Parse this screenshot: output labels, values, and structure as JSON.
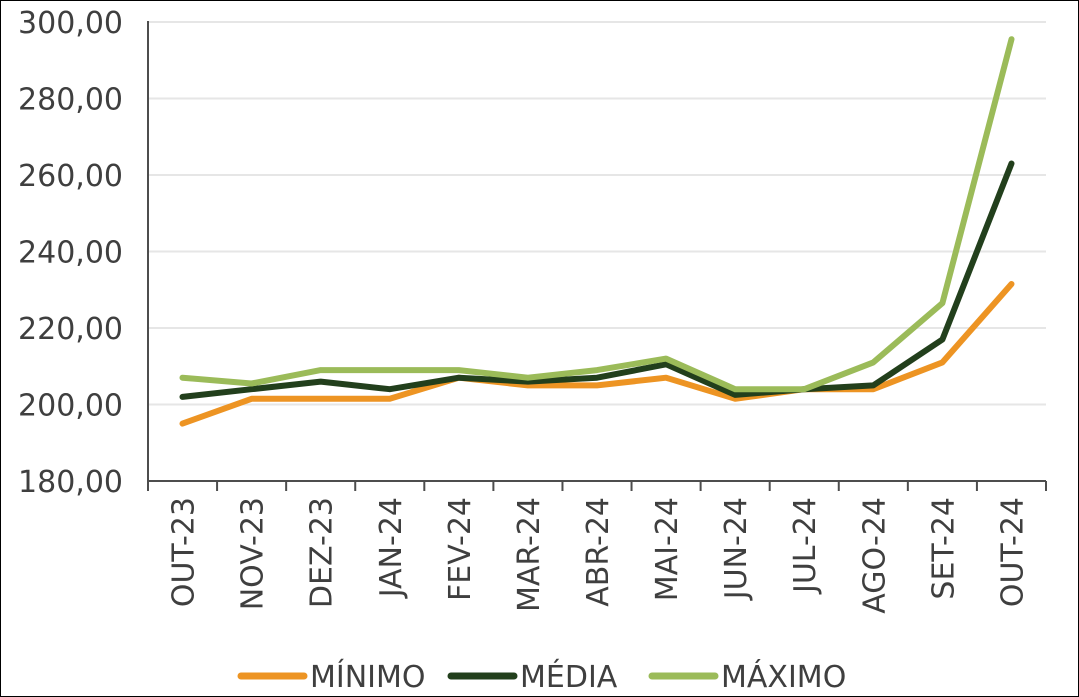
{
  "chart_data": {
    "type": "line",
    "categories": [
      "OUT-23",
      "NOV-23",
      "DEZ-23",
      "JAN-24",
      "FEV-24",
      "MAR-24",
      "ABR-24",
      "MAI-24",
      "JUN-24",
      "JUL-24",
      "AGO-24",
      "SET-24",
      "OUT-24"
    ],
    "series": [
      {
        "name": "MÍNIMO",
        "color": "#ed9423",
        "values": [
          195.0,
          201.5,
          201.5,
          201.5,
          207.0,
          205.0,
          205.0,
          207.0,
          201.5,
          204.0,
          204.0,
          211.0,
          231.5
        ]
      },
      {
        "name": "MÉDIA",
        "color": "#223f1c",
        "values": [
          202.0,
          204.0,
          206.0,
          204.0,
          207.0,
          206.0,
          207.0,
          210.5,
          202.5,
          204.0,
          205.0,
          217.0,
          263.0
        ]
      },
      {
        "name": "MÁXIMO",
        "color": "#9bbb59",
        "values": [
          207.0,
          205.5,
          209.0,
          209.0,
          209.0,
          207.0,
          209.0,
          212.0,
          204.0,
          204.0,
          211.0,
          226.5,
          295.5
        ]
      }
    ],
    "ylim": [
      180,
      300
    ],
    "yticks": [
      "180,00",
      "200,00",
      "220,00",
      "240,00",
      "260,00",
      "280,00",
      "300,00"
    ],
    "ytick_values": [
      180,
      200,
      220,
      240,
      260,
      280,
      300
    ],
    "grid": true,
    "legend": "bottom",
    "title": "",
    "xlabel": "",
    "ylabel": ""
  }
}
